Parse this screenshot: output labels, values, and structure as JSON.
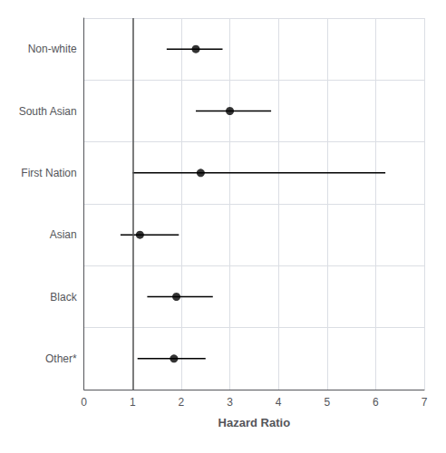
{
  "chart_data": {
    "type": "scatter",
    "xlabel": "Hazard Ratio",
    "categories": [
      "Non-white",
      "South Asian",
      "First Nation",
      "Asian",
      "Black",
      "Other*"
    ],
    "values": [
      2.3,
      3.0,
      2.4,
      1.15,
      1.9,
      1.85
    ],
    "ci_low": [
      1.7,
      2.3,
      1.0,
      0.75,
      1.3,
      1.1
    ],
    "ci_high": [
      2.85,
      3.85,
      6.2,
      1.95,
      2.65,
      2.5
    ],
    "reference_line": 1.0,
    "xlim": [
      0,
      7
    ],
    "xticks": [
      0,
      1,
      2,
      3,
      4,
      5,
      6,
      7
    ],
    "color": "#000000",
    "grid": true
  }
}
